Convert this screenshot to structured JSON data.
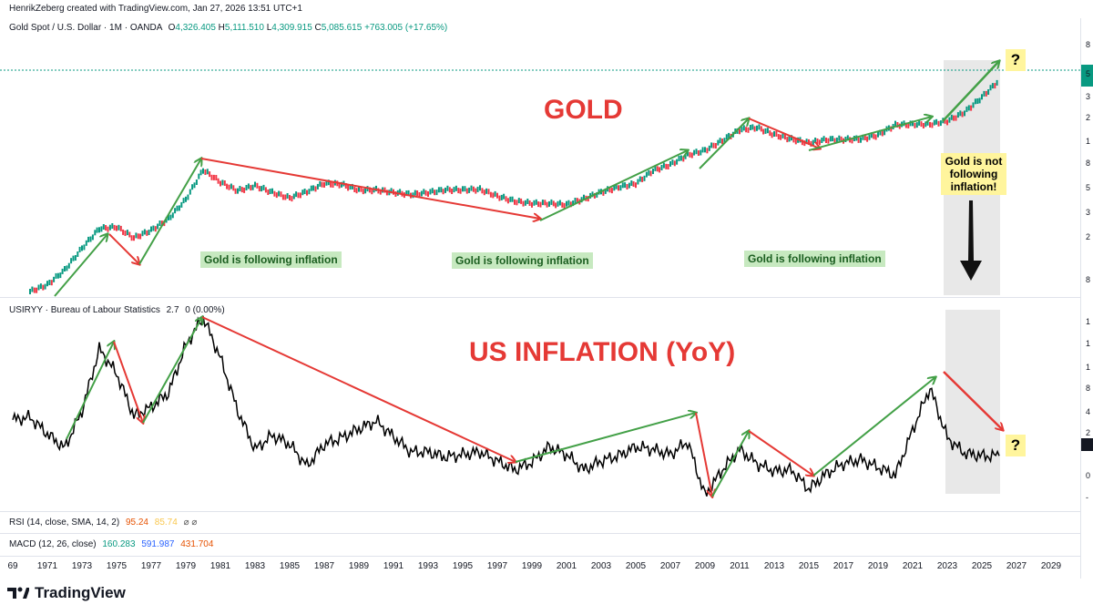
{
  "header": {
    "credit": "HenrikZeberg created with TradingView.com, Jan 27, 2026 13:51 UTC+1"
  },
  "gold_legend": {
    "symbol": "Gold Spot / U.S. Dollar · 1M · OANDA",
    "o_label": "O",
    "o_val": "4,326.405",
    "h_label": "H",
    "h_val": "5,111.510",
    "l_label": "L",
    "l_val": "4,309.915",
    "c_label": "C",
    "c_val": "5,085.615",
    "change": "+763.005 (+17.65%)"
  },
  "inflation_legend": {
    "symbol": "USIRYY · Bureau of Labour Statistics",
    "v1": "2.7",
    "v2": "0 (0.00%)"
  },
  "rsi_legend": {
    "label": "RSI (14, close, SMA, 14, 2)",
    "v1": "95.24",
    "v2": "85.74",
    "icons": "⌀ ⌀"
  },
  "macd_legend": {
    "label": "MACD (12, 26, close)",
    "v1": "160.283",
    "v2": "591.987",
    "v3": "431.704"
  },
  "annotations": {
    "gold_title": "GOLD",
    "inflation_title": "US INFLATION (YoY)",
    "follow1": "Gold is following inflation",
    "follow2": "Gold is following inflation",
    "follow3": "Gold is following inflation",
    "not_following": [
      "Gold is not",
      "following",
      "inflation!"
    ],
    "q1": "?",
    "q2": "?"
  },
  "x_axis": [
    "69",
    "1971",
    "1973",
    "1975",
    "1977",
    "1979",
    "1981",
    "1983",
    "1985",
    "1987",
    "1989",
    "1991",
    "1993",
    "1995",
    "1997",
    "1999",
    "2001",
    "2003",
    "2005",
    "2007",
    "2009",
    "2011",
    "2013",
    "2015",
    "2017",
    "2019",
    "2021",
    "2023",
    "2025",
    "2027",
    "2029"
  ],
  "gold_axis": [
    "8",
    "5",
    "3",
    "2",
    "1",
    "8",
    "5",
    "3",
    "2",
    "8"
  ],
  "inflation_axis": [
    "1",
    "1",
    "1",
    "8",
    "4",
    "2",
    "0",
    "-"
  ],
  "footer": {
    "brand": "TradingView"
  },
  "colors": {
    "up": "#089981",
    "down": "#f23645",
    "arrow_green": "#43a047",
    "arrow_red": "#e53935",
    "band": "#e0e0e0",
    "price_tag": "#089981"
  },
  "chart_data": [
    {
      "type": "line",
      "title": "Gold Spot / U.S. Dollar · 1M · OANDA",
      "scale": "log",
      "x": [
        1970,
        1971,
        1972,
        1973,
        1974,
        1975,
        1976,
        1977,
        1978,
        1979,
        1980,
        1981,
        1982,
        1983,
        1984,
        1985,
        1986,
        1987,
        1988,
        1989,
        1990,
        1991,
        1992,
        1993,
        1994,
        1995,
        1996,
        1997,
        1998,
        1999,
        2000,
        2001,
        2002,
        2003,
        2004,
        2005,
        2006,
        2007,
        2008,
        2009,
        2010,
        2011,
        2012,
        2013,
        2014,
        2015,
        2016,
        2017,
        2018,
        2019,
        2020,
        2021,
        2022,
        2023,
        2024,
        2025,
        2026
      ],
      "y": [
        35,
        41,
        58,
        97,
        154,
        160,
        124,
        148,
        193,
        306,
        615,
        460,
        376,
        424,
        361,
        317,
        368,
        447,
        437,
        381,
        383,
        362,
        344,
        360,
        384,
        384,
        388,
        331,
        294,
        279,
        279,
        271,
        310,
        363,
        409,
        444,
        604,
        695,
        872,
        972,
        1225,
        1572,
        1669,
        1411,
        1266,
        1160,
        1251,
        1257,
        1268,
        1393,
        1770,
        1799,
        1800,
        1943,
        2386,
        3400,
        5085
      ]
    },
    {
      "type": "line",
      "title": "USIRYY · Bureau of Labour Statistics",
      "x": [
        1969,
        1970,
        1971,
        1972,
        1973,
        1974,
        1975,
        1976,
        1977,
        1978,
        1979,
        1980,
        1981,
        1982,
        1983,
        1984,
        1985,
        1986,
        1987,
        1988,
        1989,
        1990,
        1991,
        1992,
        1993,
        1994,
        1995,
        1996,
        1997,
        1998,
        1999,
        2000,
        2001,
        2002,
        2003,
        2004,
        2005,
        2006,
        2007,
        2008,
        2009,
        2010,
        2011,
        2012,
        2013,
        2014,
        2015,
        2016,
        2017,
        2018,
        2019,
        2020,
        2021,
        2022,
        2023,
        2024,
        2025,
        2026
      ],
      "y": [
        5.5,
        5.7,
        4.4,
        3.3,
        6.2,
        11.0,
        9.1,
        5.8,
        6.5,
        7.6,
        11.3,
        13.5,
        10.3,
        6.2,
        3.2,
        4.3,
        3.6,
        1.9,
        3.6,
        4.1,
        4.8,
        5.4,
        4.2,
        3.0,
        3.0,
        2.6,
        2.8,
        3.0,
        2.3,
        1.6,
        2.2,
        3.4,
        2.8,
        1.6,
        2.3,
        2.7,
        3.4,
        3.2,
        2.8,
        3.8,
        -0.4,
        1.6,
        3.2,
        2.1,
        1.5,
        1.6,
        0.1,
        1.3,
        2.1,
        2.4,
        1.8,
        1.2,
        4.7,
        8.0,
        4.1,
        2.9,
        2.7,
        2.7
      ]
    }
  ]
}
